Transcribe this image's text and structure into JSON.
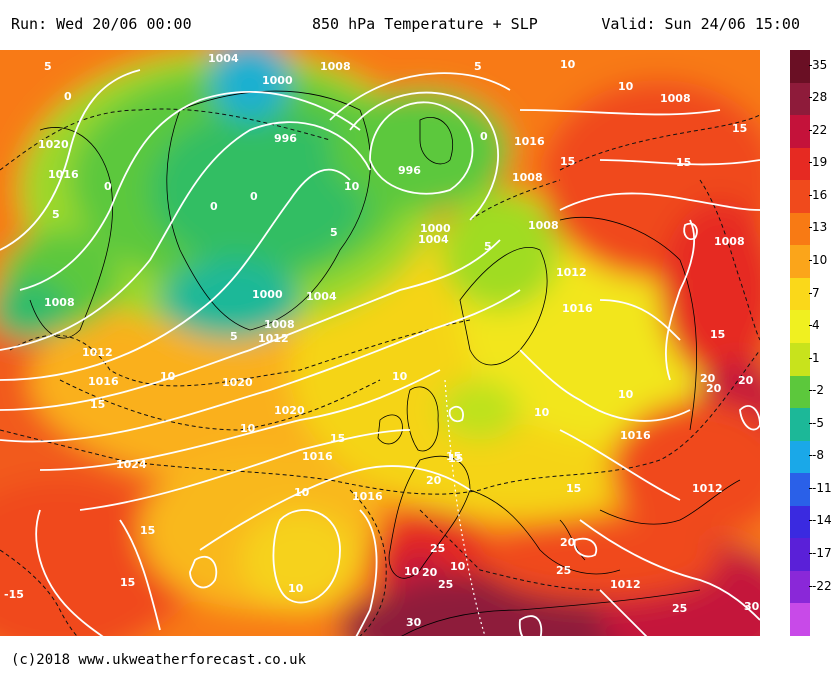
{
  "header": {
    "run": "Run: Wed 20/06 00:00",
    "title": "850 hPa Temperature + SLP",
    "valid": "Valid: Sun 24/06 15:00"
  },
  "footer": {
    "credit": "(c)2018  www.ukweatherforecast.co.uk"
  },
  "colorbar": {
    "ticks": [
      "35",
      "28",
      "22",
      "19",
      "16",
      "13",
      "10",
      "7",
      "4",
      "1",
      "-2",
      "-5",
      "-8",
      "-11",
      "-14",
      "-17",
      "-22"
    ],
    "colors": [
      "#6a0f24",
      "#8e1b3a",
      "#c4123a",
      "#e62a22",
      "#f04a1c",
      "#f87a14",
      "#fba51a",
      "#fad81a",
      "#f0f020",
      "#c8e31c",
      "#5cc83c",
      "#1cb898",
      "#1aa8e8",
      "#2a60e8",
      "#3a2ae0",
      "#5a20d8",
      "#8a28d8",
      "#c84ae8"
    ]
  },
  "map": {
    "pressure_labels": [
      "1004",
      "1008",
      "1000",
      "996",
      "1020",
      "1016",
      "996",
      "1016",
      "1008",
      "1008",
      "1008",
      "1008",
      "1004",
      "1000",
      "1012",
      "1000",
      "1008",
      "1004",
      "1012",
      "1016",
      "1008",
      "1012",
      "1016",
      "1020",
      "1020",
      "1016",
      "1024",
      "1016",
      "1016",
      "1012",
      "1012",
      "1012"
    ],
    "temp_labels": [
      "5",
      "0",
      "0",
      "5",
      "0",
      "0",
      "5",
      "10",
      "5",
      "0",
      "5",
      "10",
      "15",
      "15",
      "15",
      "15",
      "10",
      "10",
      "10",
      "15",
      "15",
      "10",
      "15",
      "10",
      "10",
      "10",
      "15",
      "20",
      "20",
      "25",
      "25",
      "20",
      "20",
      "25",
      "15",
      "15",
      "10",
      "10",
      "15",
      "20",
      "20",
      "25",
      "30",
      "30",
      "-15",
      "5",
      "10",
      "20"
    ]
  }
}
